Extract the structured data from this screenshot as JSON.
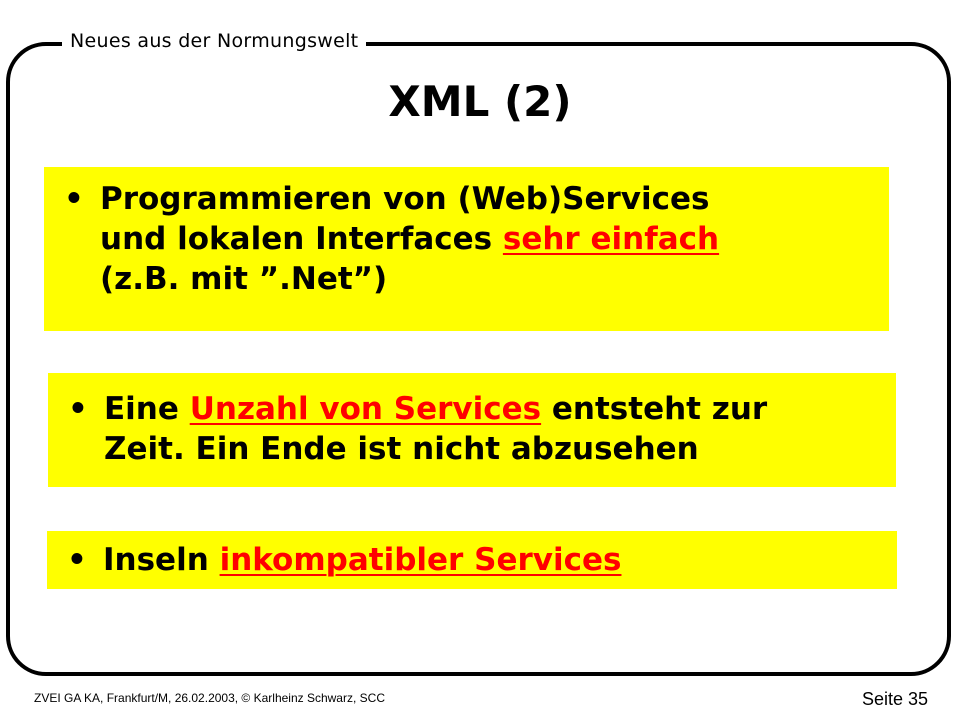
{
  "header": {
    "title": "Neues aus der Normungswelt"
  },
  "slide": {
    "title": "XML (2)",
    "bullet_symbol": "•",
    "highlight_color": "#ffff00",
    "emphasis_color": "#ff0000",
    "bullets": [
      {
        "line1": "Programmieren von (Web)Services",
        "line2_before": "und lokalen Interfaces ",
        "line2_highlight": "sehr einfach",
        "line3": "(z.B. mit ”.Net”)"
      },
      {
        "line1_before": "Eine ",
        "line1_highlight": "Unzahl von Services",
        "line1_after": " entsteht zur",
        "line2": "Zeit. Ein Ende ist nicht abzusehen"
      },
      {
        "line1_before": "Inseln ",
        "line1_highlight": "inkompatibler Services"
      }
    ]
  },
  "footer": {
    "left": "ZVEI GA KA, Frankfurt/M, 26.02.2003,  © Karlheinz  Schwarz,  SCC",
    "right": "Seite 35"
  }
}
